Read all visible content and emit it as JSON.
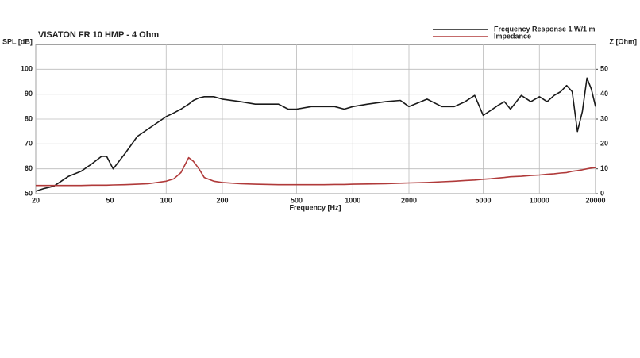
{
  "chart_data": {
    "type": "line",
    "title": "VISATON FR 10 HMP - 4 Ohm",
    "x_label": "Frequency [Hz]",
    "y_label": "SPL [dB]",
    "y2_label": "Z [Ohm]",
    "x_scale": "log",
    "grid": true,
    "legend": "top-right",
    "x": [
      20,
      22,
      25,
      30,
      35,
      40,
      45,
      48,
      52,
      60,
      70,
      80,
      100,
      110,
      120,
      132,
      140,
      150,
      160,
      180,
      200,
      250,
      300,
      400,
      450,
      500,
      600,
      700,
      800,
      900,
      1000,
      1200,
      1500,
      1800,
      2000,
      2500,
      3000,
      3500,
      4000,
      4500,
      5000,
      5500,
      6000,
      6500,
      7000,
      8000,
      9000,
      10000,
      11000,
      12000,
      13000,
      14000,
      15000,
      16000,
      17000,
      18000,
      19000,
      20000
    ],
    "series": [
      {
        "name": "Frequency Response 1 W/1 m",
        "color": "#1a1a1a",
        "values": [
          51,
          52,
          53,
          57,
          59,
          62,
          65,
          65,
          60,
          66,
          73,
          76,
          81,
          82.5,
          84,
          86,
          87.5,
          88.5,
          89,
          89,
          88,
          87,
          86,
          86,
          84,
          84,
          85,
          85,
          85,
          84,
          85,
          86,
          87,
          87.5,
          85,
          88,
          85,
          85,
          87,
          89.5,
          81.5,
          83.5,
          85.5,
          87,
          84,
          89.5,
          87,
          89,
          87,
          89.5,
          91,
          93.5,
          91,
          75,
          83,
          96.5,
          92,
          85
        ]
      },
      {
        "name": "Impedance",
        "color": "#b03a3a",
        "axis": "y2",
        "values": [
          3.3,
          3.3,
          3.3,
          3.3,
          3.3,
          3.4,
          3.4,
          3.4,
          3.5,
          3.6,
          3.8,
          4,
          5,
          6,
          8.5,
          14.5,
          13,
          10,
          6.5,
          5,
          4.5,
          4,
          3.8,
          3.6,
          3.6,
          3.6,
          3.6,
          3.6,
          3.7,
          3.7,
          3.8,
          3.9,
          4,
          4.2,
          4.3,
          4.5,
          4.8,
          5,
          5.3,
          5.5,
          5.8,
          6,
          6.3,
          6.5,
          6.8,
          7,
          7.3,
          7.5,
          7.8,
          8,
          8.3,
          8.5,
          9,
          9.3,
          9.6,
          10,
          10.3,
          10.5
        ]
      }
    ],
    "xlim": [
      20,
      20000
    ],
    "xticks": [
      20,
      50,
      100,
      200,
      500,
      1000,
      2000,
      5000,
      10000,
      20000
    ],
    "ylim": [
      50,
      110
    ],
    "yticks": [
      50,
      60,
      70,
      80,
      90,
      100
    ],
    "y2lim": [
      0,
      60
    ],
    "y2ticks": [
      0,
      10,
      20,
      30,
      40,
      50
    ]
  }
}
